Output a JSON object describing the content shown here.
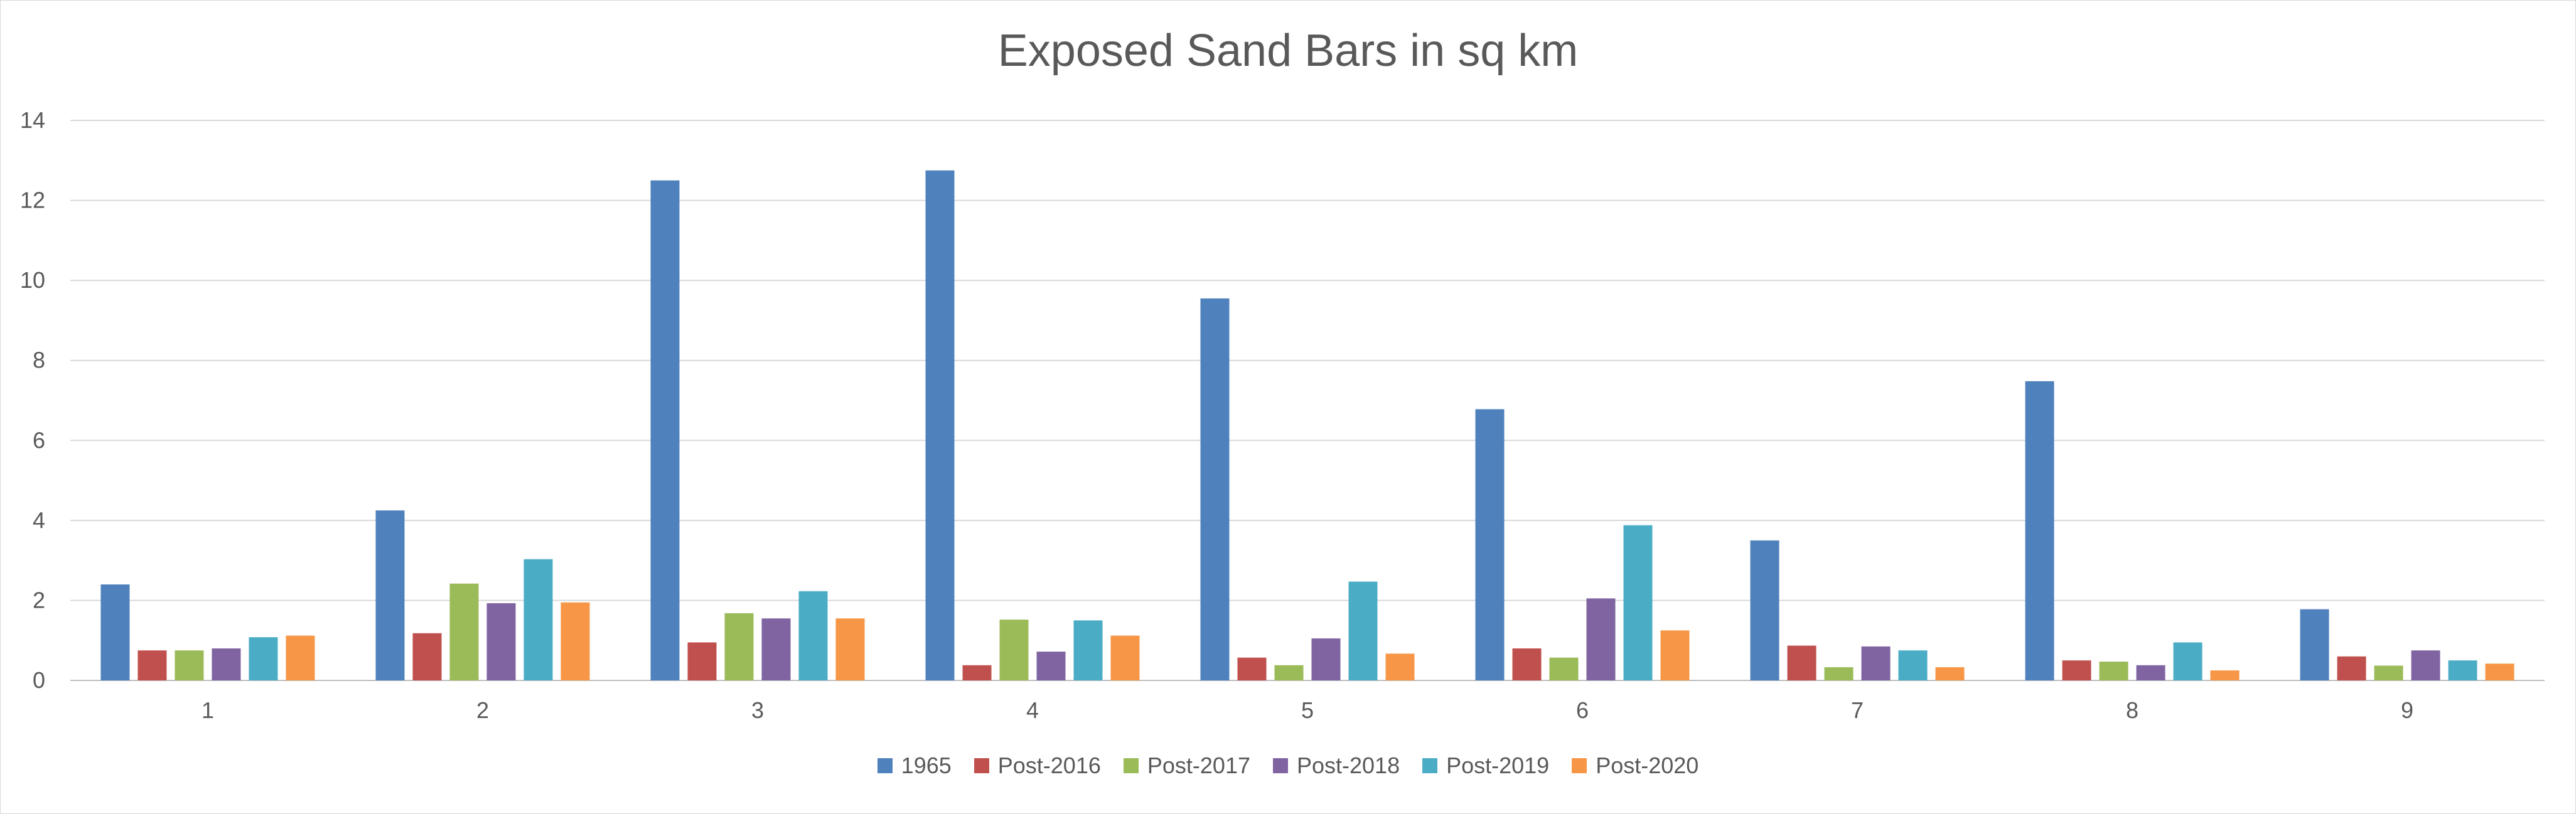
{
  "chart_data": {
    "type": "bar",
    "title": "Exposed Sand Bars in sq km",
    "xlabel": "",
    "ylabel": "",
    "ylim": [
      0,
      14
    ],
    "yticks": [
      "0",
      "2",
      "4",
      "6",
      "8",
      "10",
      "12",
      "14"
    ],
    "grid": true,
    "legend_position": "bottom",
    "categories": [
      "1",
      "2",
      "3",
      "4",
      "5",
      "6",
      "7",
      "8",
      "9"
    ],
    "series": [
      {
        "name": "1965",
        "color": "#4f81bd",
        "values": [
          2.4,
          4.25,
          12.5,
          12.75,
          9.55,
          6.78,
          3.5,
          7.48,
          1.78
        ]
      },
      {
        "name": "Post-2016",
        "color": "#c0504d",
        "values": [
          0.75,
          1.18,
          0.95,
          0.38,
          0.57,
          0.8,
          0.87,
          0.5,
          0.6
        ]
      },
      {
        "name": "Post-2017",
        "color": "#9bbb59",
        "values": [
          0.75,
          2.42,
          1.68,
          1.52,
          0.38,
          0.57,
          0.33,
          0.47,
          0.37
        ]
      },
      {
        "name": "Post-2018",
        "color": "#8064a2",
        "values": [
          0.8,
          1.93,
          1.55,
          0.72,
          1.05,
          2.05,
          0.85,
          0.38,
          0.75
        ]
      },
      {
        "name": "Post-2019",
        "color": "#4bacc6",
        "values": [
          1.08,
          3.03,
          2.23,
          1.5,
          2.47,
          3.88,
          0.75,
          0.95,
          0.5
        ]
      },
      {
        "name": "Post-2020",
        "color": "#f79646",
        "values": [
          1.12,
          1.95,
          1.55,
          1.12,
          0.67,
          1.25,
          0.33,
          0.25,
          0.42
        ]
      }
    ]
  }
}
